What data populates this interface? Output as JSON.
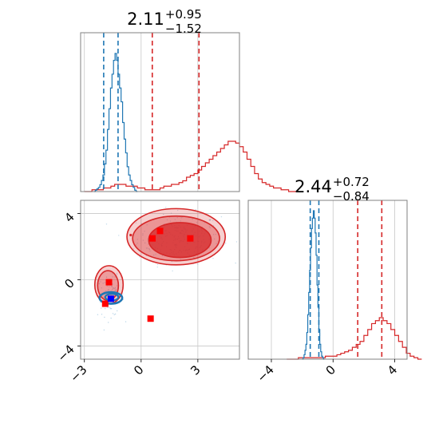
{
  "chart_data": {
    "type": "corner",
    "colors": {
      "series_a": "#d62728",
      "series_b": "#1f77b4",
      "marker_red": "#ff0000",
      "marker_blue": "#0000ff",
      "grid": "#c8c8c8",
      "frame": "#808080"
    },
    "param1": {
      "title": {
        "median": "2.11",
        "plus": "+0.95",
        "minus": "−1.52"
      },
      "xlim": [
        -3.2,
        5.2
      ],
      "ticks": [
        {
          "value": -3,
          "label": "−3"
        },
        {
          "value": 0,
          "label": "0"
        },
        {
          "value": 3,
          "label": "3"
        }
      ],
      "quantiles_red": [
        0.59,
        3.06
      ],
      "quantiles_blue": [
        -1.98,
        -1.22
      ],
      "hist_red": {
        "edges_from": -3.0,
        "bin_width": 0.2,
        "counts": [
          0,
          0,
          1,
          1,
          1,
          2,
          2,
          3,
          4,
          4,
          4,
          3,
          3,
          3,
          2,
          2,
          1,
          1,
          1,
          1,
          2,
          3,
          3,
          4,
          4,
          5,
          6,
          8,
          9,
          10,
          12,
          14,
          16,
          18,
          20,
          22,
          24,
          26,
          28,
          28,
          27,
          25,
          22,
          18,
          14,
          10,
          7,
          5,
          4,
          3,
          2,
          2,
          1,
          1,
          0,
          0
        ]
      },
      "hist_blue": {
        "edges_from": -2.5,
        "bin_width": 0.08,
        "counts": [
          0,
          1,
          2,
          3,
          5,
          8,
          12,
          20,
          30,
          45,
          60,
          75,
          85,
          95,
          100,
          95,
          85,
          75,
          65,
          50,
          38,
          28,
          18,
          12,
          8,
          5,
          3,
          1,
          0
        ]
      }
    },
    "param2": {
      "title": {
        "median": "2.44",
        "plus": "+0.72",
        "minus": "−0.84"
      },
      "xlim": [
        -5.5,
        4.8
      ],
      "ylim": [
        -4.8,
        4.8
      ],
      "ticks": [
        {
          "value": -4,
          "label": "−4"
        },
        {
          "value": 0,
          "label": "0"
        },
        {
          "value": 4,
          "label": "4"
        }
      ],
      "quantiles_red": [
        1.6,
        3.16
      ],
      "quantiles_blue": [
        -1.48,
        -0.92
      ],
      "hist_red": {
        "edges_from": -3.0,
        "bin_width": 0.25,
        "counts": [
          0,
          0,
          0,
          1,
          1,
          1,
          1,
          1,
          1,
          1,
          2,
          2,
          2,
          3,
          4,
          5,
          6,
          8,
          10,
          12,
          16,
          20,
          24,
          26,
          28,
          26,
          24,
          20,
          16,
          12,
          8,
          4,
          2,
          1,
          0
        ]
      },
      "hist_blue": {
        "edges_from": -2.0,
        "bin_width": 0.06,
        "counts": [
          0,
          1,
          3,
          6,
          10,
          18,
          30,
          45,
          60,
          75,
          88,
          95,
          100,
          95,
          85,
          70,
          50,
          35,
          20,
          10,
          5,
          2,
          1,
          0
        ]
      }
    },
    "markers_red": [
      {
        "x": 0.6,
        "y": 2.5
      },
      {
        "x": 1.0,
        "y": 2.95
      },
      {
        "x": 2.6,
        "y": 2.5
      },
      {
        "x": -1.7,
        "y": -0.15
      },
      {
        "x": -1.9,
        "y": -1.45
      },
      {
        "x": 0.5,
        "y": -2.35
      }
    ],
    "markers_blue": [
      {
        "x": -1.6,
        "y": -1.15
      }
    ]
  }
}
